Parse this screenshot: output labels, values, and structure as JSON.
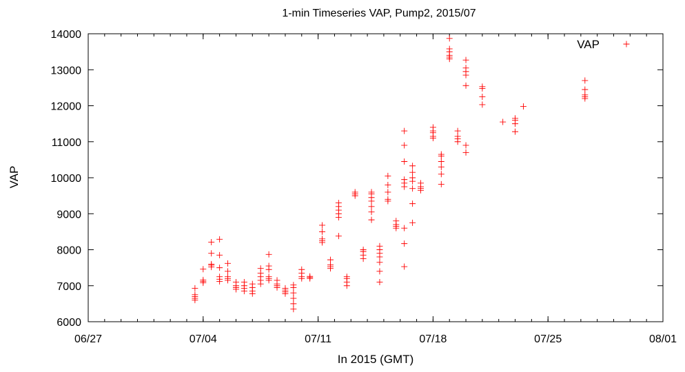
{
  "chart_data": {
    "type": "scatter",
    "title": "1-min Timeseries VAP, Pump2, 2015/07",
    "xlabel": "In 2015 (GMT)",
    "ylabel": "VAP",
    "x_unit": "date (2015)",
    "xlim": [
      "2015-06-27",
      "2015-08-01"
    ],
    "ylim": [
      6000,
      14000
    ],
    "x_ticks": [
      {
        "date": "2015-06-27",
        "label": "06/27"
      },
      {
        "date": "2015-07-04",
        "label": "07/04"
      },
      {
        "date": "2015-07-11",
        "label": "07/11"
      },
      {
        "date": "2015-07-18",
        "label": "07/18"
      },
      {
        "date": "2015-07-25",
        "label": "07/25"
      },
      {
        "date": "2015-08-01",
        "label": "08/01"
      }
    ],
    "y_ticks": [
      6000,
      7000,
      8000,
      9000,
      10000,
      11000,
      12000,
      13000,
      14000
    ],
    "minor_x_ticks": "daily",
    "grid": false,
    "legend": {
      "position": "top-right",
      "entries": [
        "VAP"
      ]
    },
    "marker": "+",
    "color": "#ff0000",
    "series": [
      {
        "name": "VAP",
        "points": [
          {
            "x": "2015-07-03 12:00",
            "y": 6600
          },
          {
            "x": "2015-07-03 12:00",
            "y": 6650
          },
          {
            "x": "2015-07-03 12:00",
            "y": 6700
          },
          {
            "x": "2015-07-03 12:00",
            "y": 6750
          },
          {
            "x": "2015-07-03 12:00",
            "y": 6930
          },
          {
            "x": "2015-07-04 00:00",
            "y": 7080
          },
          {
            "x": "2015-07-04 00:00",
            "y": 7120
          },
          {
            "x": "2015-07-04 00:00",
            "y": 7160
          },
          {
            "x": "2015-07-04 00:00",
            "y": 7460
          },
          {
            "x": "2015-07-04 12:00",
            "y": 7520
          },
          {
            "x": "2015-07-04 12:00",
            "y": 7570
          },
          {
            "x": "2015-07-04 12:00",
            "y": 7600
          },
          {
            "x": "2015-07-04 12:00",
            "y": 7900
          },
          {
            "x": "2015-07-04 12:00",
            "y": 8210
          },
          {
            "x": "2015-07-05 00:00",
            "y": 7120
          },
          {
            "x": "2015-07-05 00:00",
            "y": 7180
          },
          {
            "x": "2015-07-05 00:00",
            "y": 7250
          },
          {
            "x": "2015-07-05 00:00",
            "y": 7500
          },
          {
            "x": "2015-07-05 00:00",
            "y": 7850
          },
          {
            "x": "2015-07-05 00:00",
            "y": 8290
          },
          {
            "x": "2015-07-05 12:00",
            "y": 7150
          },
          {
            "x": "2015-07-05 12:00",
            "y": 7200
          },
          {
            "x": "2015-07-05 12:00",
            "y": 7250
          },
          {
            "x": "2015-07-05 12:00",
            "y": 7400
          },
          {
            "x": "2015-07-05 12:00",
            "y": 7620
          },
          {
            "x": "2015-07-06 00:00",
            "y": 6900
          },
          {
            "x": "2015-07-06 00:00",
            "y": 6950
          },
          {
            "x": "2015-07-06 00:00",
            "y": 7000
          },
          {
            "x": "2015-07-06 00:00",
            "y": 7100
          },
          {
            "x": "2015-07-06 12:00",
            "y": 6850
          },
          {
            "x": "2015-07-06 12:00",
            "y": 6930
          },
          {
            "x": "2015-07-06 12:00",
            "y": 7000
          },
          {
            "x": "2015-07-06 12:00",
            "y": 7100
          },
          {
            "x": "2015-07-07 00:00",
            "y": 6780
          },
          {
            "x": "2015-07-07 00:00",
            "y": 6850
          },
          {
            "x": "2015-07-07 00:00",
            "y": 6950
          },
          {
            "x": "2015-07-07 00:00",
            "y": 7050
          },
          {
            "x": "2015-07-07 12:00",
            "y": 7050
          },
          {
            "x": "2015-07-07 12:00",
            "y": 7150
          },
          {
            "x": "2015-07-07 12:00",
            "y": 7250
          },
          {
            "x": "2015-07-07 12:00",
            "y": 7350
          },
          {
            "x": "2015-07-07 12:00",
            "y": 7480
          },
          {
            "x": "2015-07-08 00:00",
            "y": 7150
          },
          {
            "x": "2015-07-08 00:00",
            "y": 7200
          },
          {
            "x": "2015-07-08 00:00",
            "y": 7250
          },
          {
            "x": "2015-07-08 00:00",
            "y": 7450
          },
          {
            "x": "2015-07-08 00:00",
            "y": 7550
          },
          {
            "x": "2015-07-08 00:00",
            "y": 7870
          },
          {
            "x": "2015-07-08 12:00",
            "y": 6950
          },
          {
            "x": "2015-07-08 12:00",
            "y": 7000
          },
          {
            "x": "2015-07-08 12:00",
            "y": 7050
          },
          {
            "x": "2015-07-08 12:00",
            "y": 7150
          },
          {
            "x": "2015-07-09 00:00",
            "y": 6780
          },
          {
            "x": "2015-07-09 00:00",
            "y": 6830
          },
          {
            "x": "2015-07-09 00:00",
            "y": 6880
          },
          {
            "x": "2015-07-09 00:00",
            "y": 6930
          },
          {
            "x": "2015-07-09 12:00",
            "y": 6350
          },
          {
            "x": "2015-07-09 12:00",
            "y": 6500
          },
          {
            "x": "2015-07-09 12:00",
            "y": 6650
          },
          {
            "x": "2015-07-09 12:00",
            "y": 6800
          },
          {
            "x": "2015-07-09 12:00",
            "y": 6950
          },
          {
            "x": "2015-07-09 12:00",
            "y": 7020
          },
          {
            "x": "2015-07-10 00:00",
            "y": 7200
          },
          {
            "x": "2015-07-10 00:00",
            "y": 7250
          },
          {
            "x": "2015-07-10 00:00",
            "y": 7350
          },
          {
            "x": "2015-07-10 00:00",
            "y": 7450
          },
          {
            "x": "2015-07-10 12:00",
            "y": 7200
          },
          {
            "x": "2015-07-10 12:00",
            "y": 7230
          },
          {
            "x": "2015-07-10 12:00",
            "y": 7260
          },
          {
            "x": "2015-07-11 06:00",
            "y": 8200
          },
          {
            "x": "2015-07-11 06:00",
            "y": 8250
          },
          {
            "x": "2015-07-11 06:00",
            "y": 8300
          },
          {
            "x": "2015-07-11 06:00",
            "y": 8500
          },
          {
            "x": "2015-07-11 06:00",
            "y": 8680
          },
          {
            "x": "2015-07-11 18:00",
            "y": 7480
          },
          {
            "x": "2015-07-11 18:00",
            "y": 7530
          },
          {
            "x": "2015-07-11 18:00",
            "y": 7580
          },
          {
            "x": "2015-07-11 18:00",
            "y": 7720
          },
          {
            "x": "2015-07-12 06:00",
            "y": 8380
          },
          {
            "x": "2015-07-12 06:00",
            "y": 8900
          },
          {
            "x": "2015-07-12 06:00",
            "y": 9000
          },
          {
            "x": "2015-07-12 06:00",
            "y": 9100
          },
          {
            "x": "2015-07-12 06:00",
            "y": 9200
          },
          {
            "x": "2015-07-12 06:00",
            "y": 9300
          },
          {
            "x": "2015-07-12 18:00",
            "y": 7000
          },
          {
            "x": "2015-07-12 18:00",
            "y": 7100
          },
          {
            "x": "2015-07-12 18:00",
            "y": 7200
          },
          {
            "x": "2015-07-12 18:00",
            "y": 7250
          },
          {
            "x": "2015-07-13 06:00",
            "y": 9500
          },
          {
            "x": "2015-07-13 06:00",
            "y": 9550
          },
          {
            "x": "2015-07-13 06:00",
            "y": 9600
          },
          {
            "x": "2015-07-13 18:00",
            "y": 7750
          },
          {
            "x": "2015-07-13 18:00",
            "y": 7850
          },
          {
            "x": "2015-07-13 18:00",
            "y": 7950
          },
          {
            "x": "2015-07-13 18:00",
            "y": 8000
          },
          {
            "x": "2015-07-14 06:00",
            "y": 8830
          },
          {
            "x": "2015-07-14 06:00",
            "y": 9050
          },
          {
            "x": "2015-07-14 06:00",
            "y": 9200
          },
          {
            "x": "2015-07-14 06:00",
            "y": 9350
          },
          {
            "x": "2015-07-14 06:00",
            "y": 9450
          },
          {
            "x": "2015-07-14 06:00",
            "y": 9550
          },
          {
            "x": "2015-07-14 06:00",
            "y": 9600
          },
          {
            "x": "2015-07-14 18:00",
            "y": 7100
          },
          {
            "x": "2015-07-14 18:00",
            "y": 7400
          },
          {
            "x": "2015-07-14 18:00",
            "y": 7650
          },
          {
            "x": "2015-07-14 18:00",
            "y": 7800
          },
          {
            "x": "2015-07-14 18:00",
            "y": 7900
          },
          {
            "x": "2015-07-14 18:00",
            "y": 8000
          },
          {
            "x": "2015-07-14 18:00",
            "y": 8100
          },
          {
            "x": "2015-07-15 06:00",
            "y": 9350
          },
          {
            "x": "2015-07-15 06:00",
            "y": 9400
          },
          {
            "x": "2015-07-15 06:00",
            "y": 9600
          },
          {
            "x": "2015-07-15 06:00",
            "y": 9800
          },
          {
            "x": "2015-07-15 06:00",
            "y": 10050
          },
          {
            "x": "2015-07-15 18:00",
            "y": 8600
          },
          {
            "x": "2015-07-15 18:00",
            "y": 8650
          },
          {
            "x": "2015-07-15 18:00",
            "y": 8700
          },
          {
            "x": "2015-07-15 18:00",
            "y": 8800
          },
          {
            "x": "2015-07-16 06:00",
            "y": 7530
          },
          {
            "x": "2015-07-16 06:00",
            "y": 8170
          },
          {
            "x": "2015-07-16 06:00",
            "y": 8600
          },
          {
            "x": "2015-07-16 06:00",
            "y": 9750
          },
          {
            "x": "2015-07-16 06:00",
            "y": 9850
          },
          {
            "x": "2015-07-16 06:00",
            "y": 9950
          },
          {
            "x": "2015-07-16 06:00",
            "y": 10450
          },
          {
            "x": "2015-07-16 06:00",
            "y": 10900
          },
          {
            "x": "2015-07-16 06:00",
            "y": 11300
          },
          {
            "x": "2015-07-16 18:00",
            "y": 8750
          },
          {
            "x": "2015-07-16 18:00",
            "y": 9280
          },
          {
            "x": "2015-07-16 18:00",
            "y": 9700
          },
          {
            "x": "2015-07-16 18:00",
            "y": 9900
          },
          {
            "x": "2015-07-16 18:00",
            "y": 10000
          },
          {
            "x": "2015-07-16 18:00",
            "y": 10150
          },
          {
            "x": "2015-07-16 18:00",
            "y": 10330
          },
          {
            "x": "2015-07-17 06:00",
            "y": 9650
          },
          {
            "x": "2015-07-17 06:00",
            "y": 9700
          },
          {
            "x": "2015-07-17 06:00",
            "y": 9750
          },
          {
            "x": "2015-07-17 06:00",
            "y": 9850
          },
          {
            "x": "2015-07-18 00:00",
            "y": 11100
          },
          {
            "x": "2015-07-18 00:00",
            "y": 11150
          },
          {
            "x": "2015-07-18 00:00",
            "y": 11250
          },
          {
            "x": "2015-07-18 00:00",
            "y": 11300
          },
          {
            "x": "2015-07-18 00:00",
            "y": 11400
          },
          {
            "x": "2015-07-18 12:00",
            "y": 9820
          },
          {
            "x": "2015-07-18 12:00",
            "y": 10100
          },
          {
            "x": "2015-07-18 12:00",
            "y": 10300
          },
          {
            "x": "2015-07-18 12:00",
            "y": 10450
          },
          {
            "x": "2015-07-18 12:00",
            "y": 10600
          },
          {
            "x": "2015-07-18 12:00",
            "y": 10650
          },
          {
            "x": "2015-07-19 00:00",
            "y": 13300
          },
          {
            "x": "2015-07-19 00:00",
            "y": 13350
          },
          {
            "x": "2015-07-19 00:00",
            "y": 13400
          },
          {
            "x": "2015-07-19 00:00",
            "y": 13500
          },
          {
            "x": "2015-07-19 00:00",
            "y": 13580
          },
          {
            "x": "2015-07-19 00:00",
            "y": 13870
          },
          {
            "x": "2015-07-19 12:00",
            "y": 11000
          },
          {
            "x": "2015-07-19 12:00",
            "y": 11080
          },
          {
            "x": "2015-07-19 12:00",
            "y": 11150
          },
          {
            "x": "2015-07-19 12:00",
            "y": 11300
          },
          {
            "x": "2015-07-20 00:00",
            "y": 10700
          },
          {
            "x": "2015-07-20 00:00",
            "y": 10900
          },
          {
            "x": "2015-07-20 00:00",
            "y": 12560
          },
          {
            "x": "2015-07-20 00:00",
            "y": 12850
          },
          {
            "x": "2015-07-20 00:00",
            "y": 12950
          },
          {
            "x": "2015-07-20 00:00",
            "y": 13050
          },
          {
            "x": "2015-07-20 00:00",
            "y": 13270
          },
          {
            "x": "2015-07-21 00:00",
            "y": 12030
          },
          {
            "x": "2015-07-21 00:00",
            "y": 12250
          },
          {
            "x": "2015-07-21 00:00",
            "y": 12480
          },
          {
            "x": "2015-07-21 00:00",
            "y": 12530
          },
          {
            "x": "2015-07-22 06:00",
            "y": 11550
          },
          {
            "x": "2015-07-23 00:00",
            "y": 11280
          },
          {
            "x": "2015-07-23 00:00",
            "y": 11500
          },
          {
            "x": "2015-07-23 00:00",
            "y": 11600
          },
          {
            "x": "2015-07-23 00:00",
            "y": 11650
          },
          {
            "x": "2015-07-23 12:00",
            "y": 11980
          },
          {
            "x": "2015-07-27 06:00",
            "y": 12200
          },
          {
            "x": "2015-07-27 06:00",
            "y": 12250
          },
          {
            "x": "2015-07-27 06:00",
            "y": 12300
          },
          {
            "x": "2015-07-27 06:00",
            "y": 12450
          },
          {
            "x": "2015-07-27 06:00",
            "y": 12700
          }
        ]
      }
    ]
  }
}
